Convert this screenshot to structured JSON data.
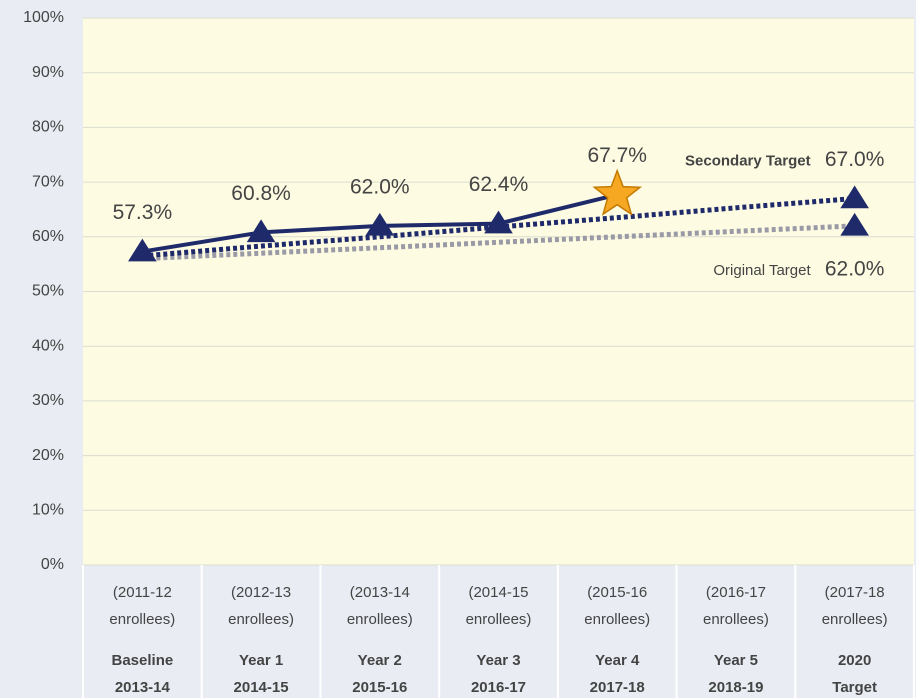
{
  "chart_data": {
    "type": "line",
    "categories": [
      [
        "(2011-12",
        "enrollees)",
        "Baseline",
        "2013-14"
      ],
      [
        "(2012-13",
        "enrollees)",
        "Year 1",
        "2014-15"
      ],
      [
        "(2013-14",
        "enrollees)",
        "Year 2",
        "2015-16"
      ],
      [
        "(2014-15",
        "enrollees)",
        "Year 3",
        "2016-17"
      ],
      [
        "(2015-16",
        "enrollees)",
        "Year 4",
        "2017-18"
      ],
      [
        "(2016-17",
        "enrollees)",
        "Year 5",
        "2018-19"
      ],
      [
        "(2017-18",
        "enrollees)",
        "2020",
        "Target"
      ]
    ],
    "series": [
      {
        "color": "#1f2a6b",
        "style": "solid",
        "values": [
          57.3,
          60.8,
          62.0,
          62.4,
          67.7,
          null,
          null
        ],
        "value_labels": [
          "57.3%",
          "60.8%",
          "62.0%",
          "62.4%",
          "67.7%",
          null,
          null
        ],
        "markers": [
          "triangle",
          "triangle",
          "triangle",
          "triangle",
          "star",
          null,
          null
        ],
        "marker_colors": [
          "#1f2a6b",
          "#1f2a6b",
          "#1f2a6b",
          "#1f2a6b",
          "#f7a823",
          null,
          null
        ],
        "label_position": "above"
      },
      {
        "name": "Secondary Target",
        "color": "#1f2a6b",
        "style": "dotted",
        "values": [
          56.5,
          58.3,
          60.0,
          61.8,
          63.5,
          65.3,
          67.0
        ],
        "value_labels": [
          null,
          null,
          null,
          null,
          null,
          null,
          "67.0%"
        ],
        "markers": [
          null,
          null,
          null,
          null,
          null,
          null,
          "triangle"
        ],
        "marker_colors": [
          null,
          null,
          null,
          null,
          null,
          null,
          "#1f2a6b"
        ],
        "label_position": "above",
        "name_bold": true
      },
      {
        "name": "Original Target",
        "color": "#9a9aa6",
        "style": "dotted",
        "values": [
          56.0,
          57.0,
          58.0,
          59.0,
          60.0,
          61.0,
          62.0
        ],
        "value_labels": [
          null,
          null,
          null,
          null,
          null,
          null,
          "62.0%"
        ],
        "markers": [
          null,
          null,
          null,
          null,
          null,
          null,
          "triangle"
        ],
        "marker_colors": [
          null,
          null,
          null,
          null,
          null,
          null,
          "#1f2a6b"
        ],
        "label_position": "below",
        "name_bold": false
      }
    ],
    "ylim": [
      0,
      100
    ],
    "yticks": [
      {
        "value": 0,
        "label": "0%"
      },
      {
        "value": 10,
        "label": "10%"
      },
      {
        "value": 20,
        "label": "20%"
      },
      {
        "value": 30,
        "label": "30%"
      },
      {
        "value": 40,
        "label": "40%"
      },
      {
        "value": 50,
        "label": "50%"
      },
      {
        "value": 60,
        "label": "60%"
      },
      {
        "value": 70,
        "label": "70%"
      },
      {
        "value": 80,
        "label": "80%"
      },
      {
        "value": 90,
        "label": "90%"
      },
      {
        "value": 100,
        "label": "100%"
      }
    ],
    "grid": true
  }
}
